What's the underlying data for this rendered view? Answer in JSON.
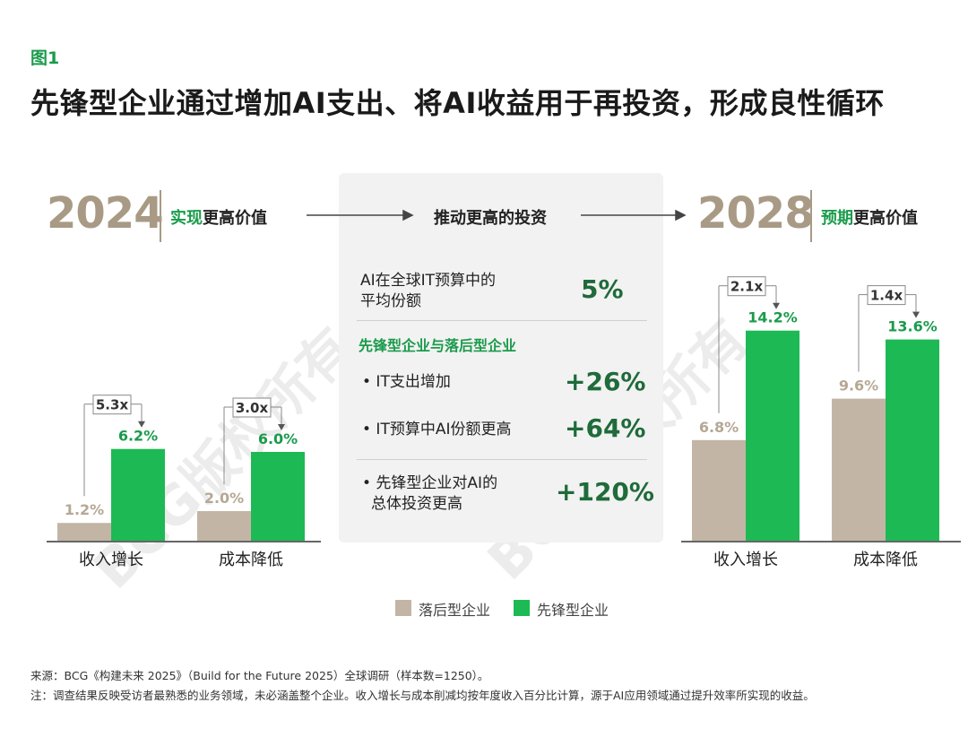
{
  "figure_label": "图1",
  "title": "先锋型企业通过增加AI支出、将AI收益用于再投资，形成良性循环",
  "left": {
    "year": "2024",
    "header_highlight": "实现",
    "header_rest": "更高价值"
  },
  "middle": {
    "header": "推动更高的投资",
    "stat1_label_line1": "AI在全球IT预算中的",
    "stat1_label_line2": "平均份额",
    "stat1_value": "5%",
    "subheading": "先锋型企业与落后型企业",
    "bullet1_label": "• IT支出增加",
    "bullet1_value": "+26%",
    "bullet2_label": "• IT预算中AI份额更高",
    "bullet2_value": "+64%",
    "bullet3_label_line1": "• 先锋型企业对AI的",
    "bullet3_label_line2": "总体投资更高",
    "bullet3_value": "+120%"
  },
  "right": {
    "year": "2028",
    "header_highlight": "预期",
    "header_rest": "更高价值"
  },
  "legend": {
    "laggards": "落后型企业",
    "leaders": "先锋型企业"
  },
  "colors": {
    "laggards": "#c3b5a5",
    "leaders": "#1db954",
    "accent_green": "#1a9b4b",
    "year_tan": "#a89a84"
  },
  "watermark": "BCG版权所有",
  "footnote_source": "来源：BCG《构建未来 2025》（Build for the Future 2025）全球调研（样本数=1250）。",
  "footnote_note": "注：调查结果反映受访者最熟悉的业务领域，未必涵盖整个企业。收入增长与成本削减均按年度收入百分比计算，源于AI应用领域通过提升效率所实现的收益。",
  "chart_data": [
    {
      "type": "bar",
      "period": "2024",
      "categories": [
        "收入增长",
        "成本降低"
      ],
      "series": [
        {
          "name": "落后型企业",
          "values": [
            1.2,
            2.0
          ],
          "labels": [
            "1.2%",
            "2.0%"
          ]
        },
        {
          "name": "先锋型企业",
          "values": [
            6.2,
            6.0
          ],
          "labels": [
            "6.2%",
            "6.0%"
          ]
        }
      ],
      "multipliers": [
        "5.3x",
        "3.0x"
      ]
    },
    {
      "type": "bar",
      "period": "2028",
      "categories": [
        "收入增长",
        "成本降低"
      ],
      "series": [
        {
          "name": "落后型企业",
          "values": [
            6.8,
            9.6
          ],
          "labels": [
            "6.8%",
            "9.6%"
          ]
        },
        {
          "name": "先锋型企业",
          "values": [
            14.2,
            13.6
          ],
          "labels": [
            "14.2%",
            "13.6%"
          ]
        }
      ],
      "multipliers": [
        "2.1x",
        "1.4x"
      ]
    }
  ]
}
